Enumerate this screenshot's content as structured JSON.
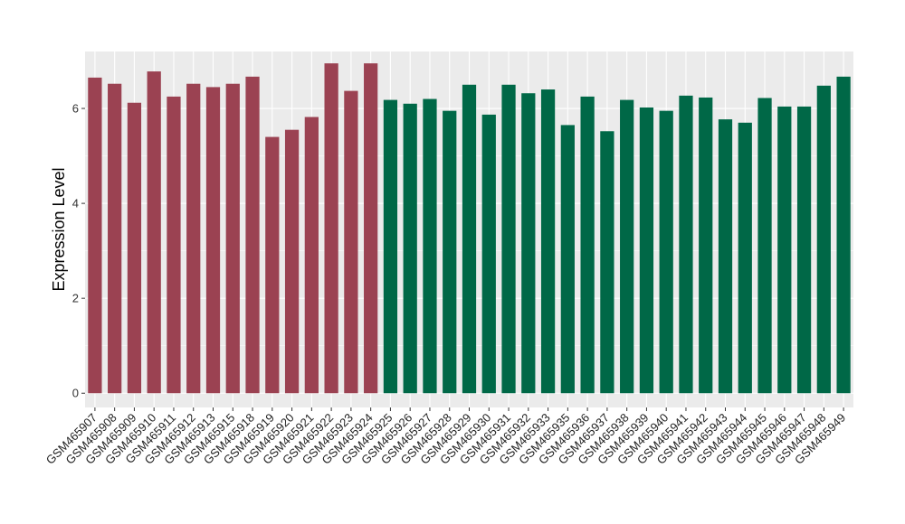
{
  "chart_data": {
    "type": "bar",
    "title": "",
    "xlabel": "",
    "ylabel": "Expression Level",
    "ylim": [
      -0.3,
      7.2
    ],
    "yticks": [
      0,
      2,
      4,
      6
    ],
    "grid": true,
    "legend": "none",
    "colors": {
      "panel": "#EBEBEB",
      "grid": "#FFFFFF"
    },
    "categories": [
      "GSM465907",
      "GSM465908",
      "GSM465909",
      "GSM465910",
      "GSM465911",
      "GSM465912",
      "GSM465913",
      "GSM465915",
      "GSM465918",
      "GSM465919",
      "GSM465920",
      "GSM465921",
      "GSM465922",
      "GSM465923",
      "GSM465924",
      "GSM465925",
      "GSM465926",
      "GSM465927",
      "GSM465928",
      "GSM465929",
      "GSM465930",
      "GSM465931",
      "GSM465932",
      "GSM465933",
      "GSM465935",
      "GSM465936",
      "GSM465937",
      "GSM465938",
      "GSM465939",
      "GSM465940",
      "GSM465941",
      "GSM465942",
      "GSM465943",
      "GSM465944",
      "GSM465945",
      "GSM465946",
      "GSM465947",
      "GSM465948",
      "GSM465949"
    ],
    "values": [
      6.65,
      6.52,
      6.12,
      6.78,
      6.25,
      6.52,
      6.45,
      6.52,
      6.67,
      5.4,
      5.55,
      5.82,
      6.95,
      6.37,
      6.95,
      6.18,
      6.1,
      6.2,
      5.95,
      6.5,
      5.87,
      6.5,
      6.32,
      6.4,
      5.65,
      6.25,
      5.52,
      6.18,
      6.02,
      5.95,
      6.27,
      6.23,
      5.77,
      5.7,
      6.22,
      6.04,
      6.04,
      6.48,
      6.67
    ],
    "bar_colors": [
      "#9B4252",
      "#9B4252",
      "#9B4252",
      "#9B4252",
      "#9B4252",
      "#9B4252",
      "#9B4252",
      "#9B4252",
      "#9B4252",
      "#9B4252",
      "#9B4252",
      "#9B4252",
      "#9B4252",
      "#9B4252",
      "#9B4252",
      "#006847",
      "#006847",
      "#006847",
      "#006847",
      "#006847",
      "#006847",
      "#006847",
      "#006847",
      "#006847",
      "#006847",
      "#006847",
      "#006847",
      "#006847",
      "#006847",
      "#006847",
      "#006847",
      "#006847",
      "#006847",
      "#006847",
      "#006847",
      "#006847",
      "#006847",
      "#006847",
      "#006847"
    ]
  }
}
